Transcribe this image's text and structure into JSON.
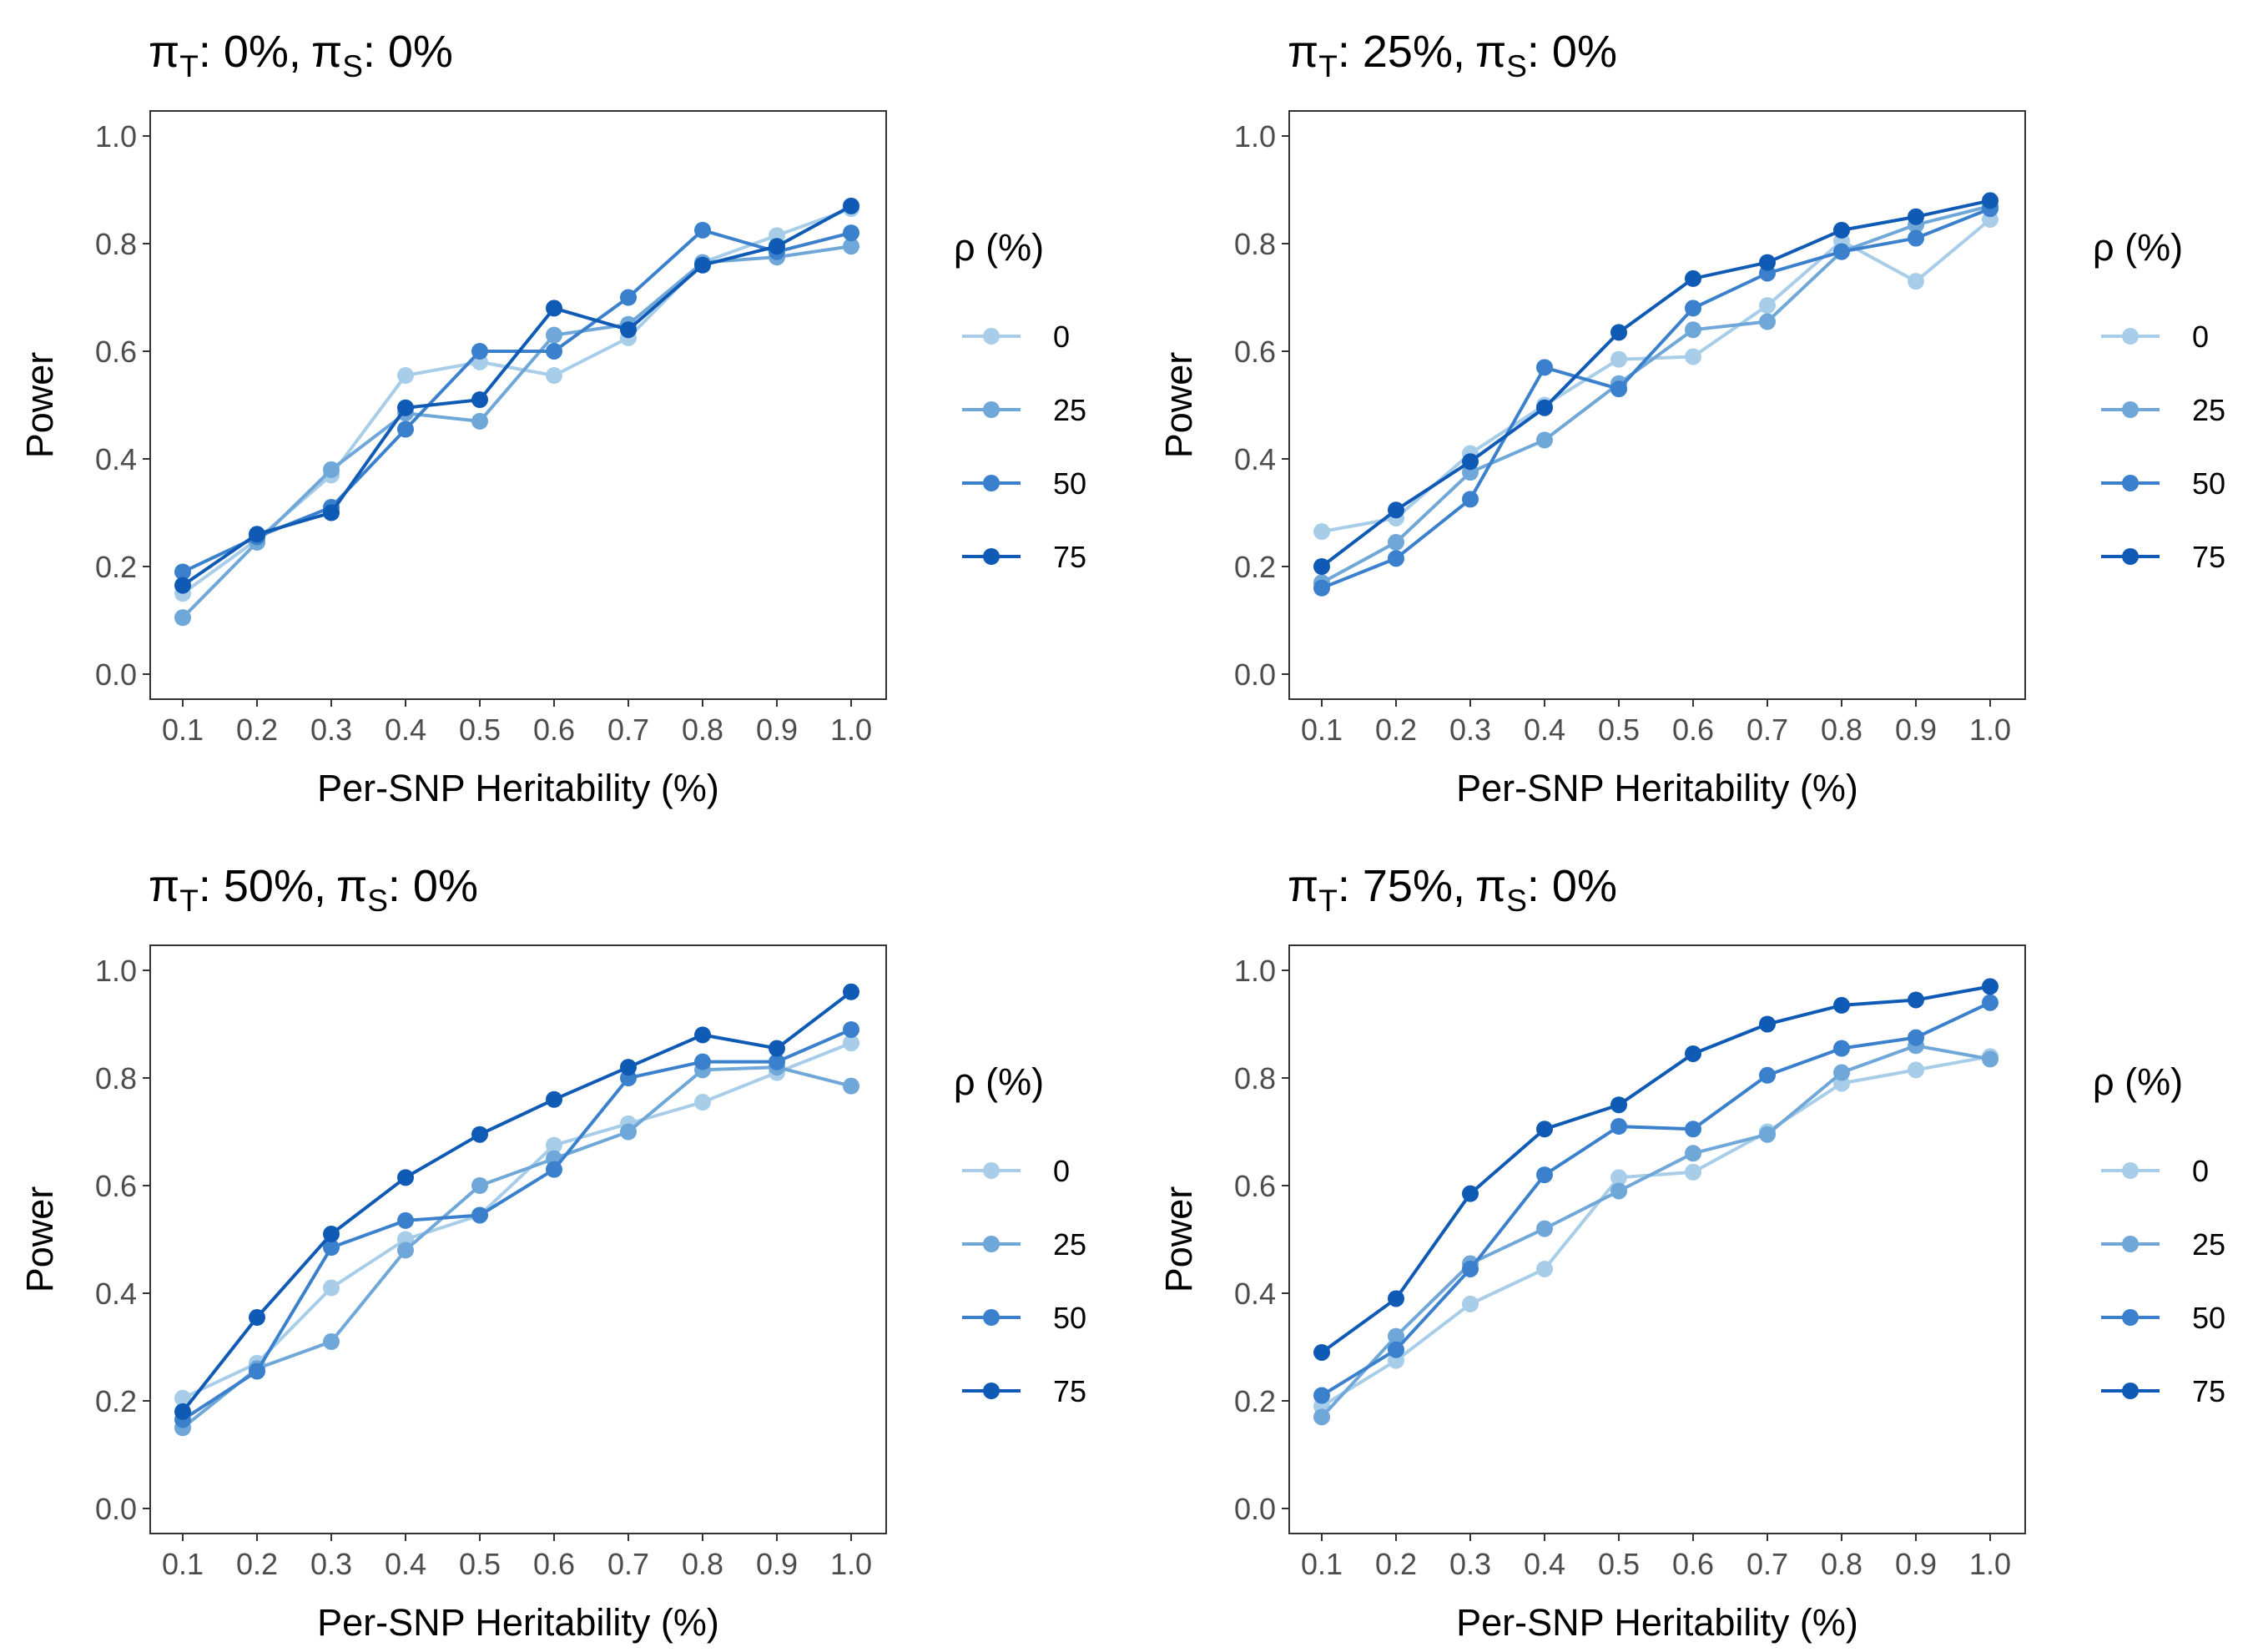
{
  "chart_data": [
    {
      "type": "line",
      "title": {
        "t_sub": "T",
        "t_value": ": 0%,",
        "s_sub": "S",
        "s_value": ": 0%",
        "symbol": "π"
      },
      "xlabel": "Per-SNP Heritability (%)",
      "ylabel": "Power",
      "x": [
        0.1,
        0.2,
        0.3,
        0.4,
        0.5,
        0.6,
        0.7,
        0.8,
        0.9,
        1.0
      ],
      "x_tick_labels": [
        "0.1",
        "0.2",
        "0.3",
        "0.4",
        "0.5",
        "0.6",
        "0.7",
        "0.8",
        "0.9",
        "1.0"
      ],
      "ylim": [
        0,
        1
      ],
      "y_ticks": [
        0,
        0.2,
        0.4,
        0.6,
        0.8,
        1.0
      ],
      "y_tick_labels": [
        "0.0",
        "0.2",
        "0.4",
        "0.6",
        "0.8",
        "1.0"
      ],
      "legend_title": "ρ (%)",
      "legend_position": "right",
      "grid": false,
      "series": [
        {
          "name": "0",
          "color": "#a8cde8",
          "values": [
            0.15,
            0.25,
            0.37,
            0.555,
            0.58,
            0.555,
            0.625,
            0.765,
            0.815,
            0.865
          ]
        },
        {
          "name": "25",
          "color": "#6ea7d8",
          "values": [
            0.105,
            0.245,
            0.38,
            0.485,
            0.47,
            0.63,
            0.65,
            0.765,
            0.775,
            0.795
          ]
        },
        {
          "name": "50",
          "color": "#3a80cc",
          "values": [
            0.19,
            0.255,
            0.31,
            0.455,
            0.6,
            0.6,
            0.7,
            0.825,
            0.785,
            0.82
          ]
        },
        {
          "name": "75",
          "color": "#0f5ab4",
          "values": [
            0.165,
            0.26,
            0.3,
            0.495,
            0.51,
            0.68,
            0.64,
            0.76,
            0.795,
            0.87
          ]
        }
      ]
    },
    {
      "type": "line",
      "title": {
        "t_sub": "T",
        "t_value": ": 25%,",
        "s_sub": "S",
        "s_value": ": 0%",
        "symbol": "π"
      },
      "xlabel": "Per-SNP Heritability (%)",
      "ylabel": "Power",
      "x": [
        0.1,
        0.2,
        0.3,
        0.4,
        0.5,
        0.6,
        0.7,
        0.8,
        0.9,
        1.0
      ],
      "x_tick_labels": [
        "0.1",
        "0.2",
        "0.3",
        "0.4",
        "0.5",
        "0.6",
        "0.7",
        "0.8",
        "0.9",
        "1.0"
      ],
      "ylim": [
        0,
        1
      ],
      "y_ticks": [
        0,
        0.2,
        0.4,
        0.6,
        0.8,
        1.0
      ],
      "y_tick_labels": [
        "0.0",
        "0.2",
        "0.4",
        "0.6",
        "0.8",
        "1.0"
      ],
      "legend_title": "ρ (%)",
      "legend_position": "right",
      "grid": false,
      "series": [
        {
          "name": "0",
          "color": "#a8cde8",
          "values": [
            0.265,
            0.29,
            0.41,
            0.5,
            0.585,
            0.59,
            0.685,
            0.805,
            0.73,
            0.845
          ]
        },
        {
          "name": "25",
          "color": "#6ea7d8",
          "values": [
            0.17,
            0.245,
            0.375,
            0.435,
            0.54,
            0.64,
            0.655,
            0.785,
            0.835,
            0.87
          ]
        },
        {
          "name": "50",
          "color": "#3a80cc",
          "values": [
            0.16,
            0.215,
            0.325,
            0.57,
            0.53,
            0.68,
            0.745,
            0.785,
            0.81,
            0.865
          ]
        },
        {
          "name": "75",
          "color": "#0f5ab4",
          "values": [
            0.2,
            0.305,
            0.395,
            0.495,
            0.635,
            0.735,
            0.765,
            0.825,
            0.85,
            0.88
          ]
        }
      ]
    },
    {
      "type": "line",
      "title": {
        "t_sub": "T",
        "t_value": ": 50%,",
        "s_sub": "S",
        "s_value": ": 0%",
        "symbol": "π"
      },
      "xlabel": "Per-SNP Heritability (%)",
      "ylabel": "Power",
      "x": [
        0.1,
        0.2,
        0.3,
        0.4,
        0.5,
        0.6,
        0.7,
        0.8,
        0.9,
        1.0
      ],
      "x_tick_labels": [
        "0.1",
        "0.2",
        "0.3",
        "0.4",
        "0.5",
        "0.6",
        "0.7",
        "0.8",
        "0.9",
        "1.0"
      ],
      "ylim": [
        0,
        1
      ],
      "y_ticks": [
        0,
        0.2,
        0.4,
        0.6,
        0.8,
        1.0
      ],
      "y_tick_labels": [
        "0.0",
        "0.2",
        "0.4",
        "0.6",
        "0.8",
        "1.0"
      ],
      "legend_title": "ρ (%)",
      "legend_position": "right",
      "grid": false,
      "series": [
        {
          "name": "0",
          "color": "#a8cde8",
          "values": [
            0.205,
            0.27,
            0.41,
            0.5,
            0.545,
            0.675,
            0.715,
            0.755,
            0.81,
            0.865
          ]
        },
        {
          "name": "25",
          "color": "#6ea7d8",
          "values": [
            0.15,
            0.26,
            0.31,
            0.48,
            0.6,
            0.65,
            0.7,
            0.815,
            0.82,
            0.785
          ]
        },
        {
          "name": "50",
          "color": "#3a80cc",
          "values": [
            0.165,
            0.255,
            0.485,
            0.535,
            0.545,
            0.63,
            0.8,
            0.83,
            0.83,
            0.89
          ]
        },
        {
          "name": "75",
          "color": "#0f5ab4",
          "values": [
            0.18,
            0.355,
            0.51,
            0.615,
            0.695,
            0.76,
            0.82,
            0.88,
            0.855,
            0.96
          ]
        }
      ]
    },
    {
      "type": "line",
      "title": {
        "t_sub": "T",
        "t_value": ": 75%,",
        "s_sub": "S",
        "s_value": ": 0%",
        "symbol": "π"
      },
      "xlabel": "Per-SNP Heritability (%)",
      "ylabel": "Power",
      "x": [
        0.1,
        0.2,
        0.3,
        0.4,
        0.5,
        0.6,
        0.7,
        0.8,
        0.9,
        1.0
      ],
      "x_tick_labels": [
        "0.1",
        "0.2",
        "0.3",
        "0.4",
        "0.5",
        "0.6",
        "0.7",
        "0.8",
        "0.9",
        "1.0"
      ],
      "ylim": [
        0,
        1
      ],
      "y_ticks": [
        0,
        0.2,
        0.4,
        0.6,
        0.8,
        1.0
      ],
      "y_tick_labels": [
        "0.0",
        "0.2",
        "0.4",
        "0.6",
        "0.8",
        "1.0"
      ],
      "legend_title": "ρ (%)",
      "legend_position": "right",
      "grid": false,
      "series": [
        {
          "name": "0",
          "color": "#a8cde8",
          "values": [
            0.19,
            0.275,
            0.38,
            0.445,
            0.615,
            0.625,
            0.7,
            0.79,
            0.815,
            0.84
          ]
        },
        {
          "name": "25",
          "color": "#6ea7d8",
          "values": [
            0.17,
            0.32,
            0.455,
            0.52,
            0.59,
            0.66,
            0.695,
            0.81,
            0.86,
            0.835
          ]
        },
        {
          "name": "50",
          "color": "#3a80cc",
          "values": [
            0.21,
            0.295,
            0.445,
            0.62,
            0.71,
            0.705,
            0.805,
            0.855,
            0.875,
            0.94
          ]
        },
        {
          "name": "75",
          "color": "#0f5ab4",
          "values": [
            0.29,
            0.39,
            0.585,
            0.705,
            0.75,
            0.845,
            0.9,
            0.935,
            0.945,
            0.97
          ]
        }
      ]
    }
  ]
}
